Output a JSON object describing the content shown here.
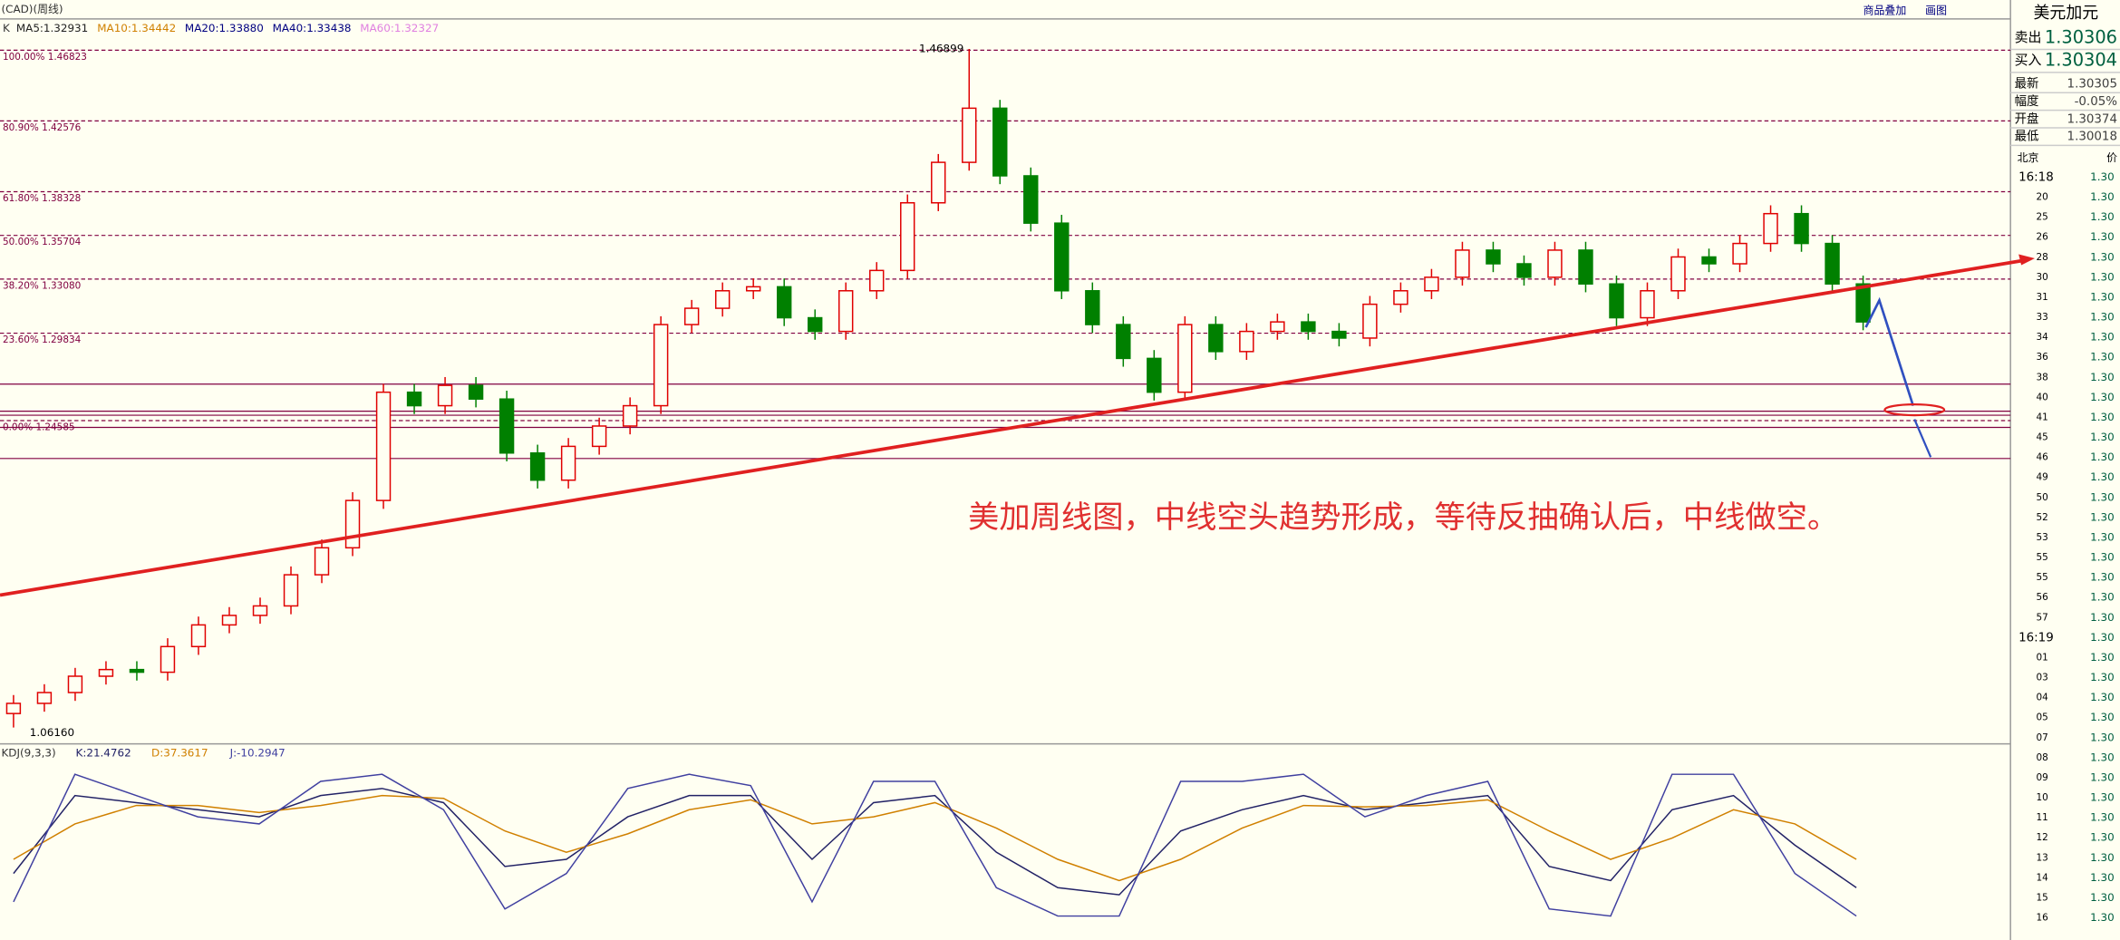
{
  "header": {
    "title": "(CAD)(周线)",
    "prefix": "K",
    "ma": [
      {
        "label": "MA5:1.32931",
        "color": "#222222"
      },
      {
        "label": "MA10:1.34442",
        "color": "#d08000"
      },
      {
        "label": "MA20:1.33880",
        "color": "#000080"
      },
      {
        "label": "MA40:1.33438",
        "color": "#000080"
      },
      {
        "label": "MA60:1.32327",
        "color": "#e080e0"
      }
    ],
    "buttons": [
      "商品叠加",
      "画图"
    ]
  },
  "chart_data": {
    "type": "candlestick",
    "ylim": [
      1.0534,
      1.474
    ],
    "up_color": "#e00000",
    "down_color": "#008000",
    "open": [
      1.07,
      1.0761,
      1.0826,
      1.0924,
      1.0964,
      1.0948,
      1.1102,
      1.1232,
      1.1289,
      1.1346,
      1.1533,
      1.1695,
      1.1979,
      1.2629,
      1.2548,
      1.267,
      1.2588,
      1.2264,
      1.2101,
      1.2304,
      1.2426,
      1.2548,
      1.3035,
      1.3133,
      1.3238,
      1.3262,
      1.3076,
      1.2994,
      1.3238,
      1.336,
      1.3766,
      1.4009,
      1.4334,
      1.3928,
      1.3644,
      1.3238,
      1.3035,
      1.2832,
      1.2629,
      1.3035,
      1.2873,
      1.2994,
      1.3051,
      1.2994,
      1.2954,
      1.3157,
      1.3238,
      1.3319,
      1.3482,
      1.34,
      1.3319,
      1.3482,
      1.3279,
      1.3076,
      1.3238,
      1.3441,
      1.34,
      1.3522,
      1.3701,
      1.3522,
      1.3279
    ],
    "high": [
      1.0811,
      1.0876,
      1.0974,
      1.1014,
      1.1014,
      1.1152,
      1.1282,
      1.1339,
      1.1396,
      1.1583,
      1.1745,
      1.2029,
      1.2679,
      1.2679,
      1.272,
      1.272,
      1.2638,
      1.2314,
      1.2354,
      1.2476,
      1.2598,
      1.3085,
      1.3183,
      1.3288,
      1.3312,
      1.3312,
      1.3126,
      1.3288,
      1.341,
      1.3816,
      1.4059,
      1.46899,
      1.4384,
      1.3978,
      1.3694,
      1.3288,
      1.3085,
      1.2882,
      1.3085,
      1.3085,
      1.3044,
      1.3101,
      1.3101,
      1.3044,
      1.3207,
      1.3288,
      1.3369,
      1.3532,
      1.3532,
      1.345,
      1.3532,
      1.3532,
      1.3329,
      1.3288,
      1.3491,
      1.3491,
      1.3572,
      1.3751,
      1.3751,
      1.3572,
      1.3329
    ],
    "low": [
      1.0616,
      1.0711,
      1.0776,
      1.0874,
      1.0898,
      1.0898,
      1.1052,
      1.1182,
      1.1239,
      1.1296,
      1.1483,
      1.1645,
      1.1929,
      1.2498,
      1.2498,
      1.2538,
      1.2214,
      1.2051,
      1.2051,
      1.2254,
      1.2376,
      1.2498,
      1.2985,
      1.3083,
      1.3188,
      1.3026,
      1.2944,
      1.2944,
      1.3188,
      1.331,
      1.3716,
      1.3959,
      1.3878,
      1.3594,
      1.3188,
      1.2985,
      1.2782,
      1.2579,
      1.2579,
      1.2823,
      1.2823,
      1.2944,
      1.2944,
      1.2904,
      1.2904,
      1.3107,
      1.3188,
      1.3269,
      1.335,
      1.3269,
      1.3269,
      1.3229,
      1.3026,
      1.3026,
      1.3188,
      1.335,
      1.335,
      1.3472,
      1.3472,
      1.3229,
      1.3001
    ],
    "close": [
      1.0761,
      1.0826,
      1.0924,
      1.0964,
      1.0948,
      1.1102,
      1.1232,
      1.1289,
      1.1346,
      1.1533,
      1.1695,
      1.1979,
      1.2629,
      1.2548,
      1.267,
      1.2588,
      1.2264,
      1.2101,
      1.2304,
      1.2426,
      1.2548,
      1.3035,
      1.3133,
      1.3238,
      1.3262,
      1.3076,
      1.2994,
      1.3238,
      1.336,
      1.3766,
      1.4009,
      1.4334,
      1.3928,
      1.3644,
      1.3238,
      1.3035,
      1.2832,
      1.2629,
      1.3035,
      1.2873,
      1.2994,
      1.3051,
      1.2994,
      1.2954,
      1.3157,
      1.3238,
      1.3319,
      1.3482,
      1.34,
      1.3319,
      1.3482,
      1.3279,
      1.3076,
      1.3238,
      1.3441,
      1.34,
      1.3522,
      1.3701,
      1.3522,
      1.3279,
      1.3051
    ],
    "fib_levels": [
      {
        "value": 1.46823,
        "label": "100.00% 1.46823"
      },
      {
        "value": 1.42576,
        "label": "80.90% 1.42576"
      },
      {
        "value": 1.38328,
        "label": "61.80% 1.38328"
      },
      {
        "value": 1.35704,
        "label": "50.00% 1.35704"
      },
      {
        "value": 1.3308,
        "label": "38.20% 1.33080"
      },
      {
        "value": 1.29834,
        "label": "23.60% 1.29834"
      },
      {
        "value": 1.24585,
        "label": "0.00% 1.24585"
      }
    ],
    "max_label": 1.46899,
    "min_label": {
      "value": 1.0616,
      "label": "1.06160"
    },
    "annotation": "美加周线图，中线空头趋势形成，等待反抽确认后，中线做空。"
  },
  "kdj": {
    "title": "KDJ(9,3,3)",
    "k_label": "K:21.4762",
    "d_label": "D:37.3617",
    "j_label": "J:-10.2947",
    "ylim": [
      -15,
      110
    ],
    "series": [
      {
        "color": "#222266",
        "values": [
          30,
          85,
          80,
          75,
          70,
          85,
          90,
          80,
          35,
          40,
          70,
          85,
          85,
          40,
          80,
          85,
          45,
          20,
          15,
          60,
          75,
          85,
          75,
          80,
          85,
          35,
          25,
          75,
          85,
          50,
          20
        ]
      },
      {
        "color": "#d08000",
        "values": [
          40,
          65,
          78,
          78,
          73,
          78,
          85,
          83,
          60,
          45,
          58,
          75,
          82,
          65,
          70,
          80,
          62,
          40,
          25,
          40,
          62,
          78,
          77,
          78,
          82,
          60,
          40,
          55,
          75,
          65,
          40
        ]
      },
      {
        "color": "#4040a0",
        "values": [
          10,
          100,
          85,
          70,
          65,
          95,
          100,
          75,
          5,
          30,
          90,
          100,
          92,
          10,
          95,
          95,
          20,
          0,
          0,
          95,
          95,
          100,
          70,
          85,
          95,
          5,
          0,
          100,
          100,
          30,
          0
        ]
      }
    ]
  },
  "quote": {
    "title": "美元加元",
    "rows": [
      [
        "卖出",
        "1.30306"
      ],
      [
        "买入",
        "1.30304"
      ],
      [
        "最新",
        "1.30305"
      ],
      [
        "幅度",
        "-0.05%"
      ],
      [
        "开盘",
        "1.30374"
      ],
      [
        "最低",
        "1.30018"
      ]
    ],
    "ticks_header": [
      "北京",
      "价"
    ],
    "ticks": [
      [
        "16:18",
        "1.30"
      ],
      [
        "20",
        "1.30"
      ],
      [
        "25",
        "1.30"
      ],
      [
        "26",
        "1.30"
      ],
      [
        "28",
        "1.30"
      ],
      [
        "30",
        "1.30"
      ],
      [
        "31",
        "1.30"
      ],
      [
        "33",
        "1.30"
      ],
      [
        "34",
        "1.30"
      ],
      [
        "36",
        "1.30"
      ],
      [
        "38",
        "1.30"
      ],
      [
        "40",
        "1.30"
      ],
      [
        "41",
        "1.30"
      ],
      [
        "45",
        "1.30"
      ],
      [
        "46",
        "1.30"
      ],
      [
        "49",
        "1.30"
      ],
      [
        "50",
        "1.30"
      ],
      [
        "52",
        "1.30"
      ],
      [
        "53",
        "1.30"
      ],
      [
        "55",
        "1.30"
      ],
      [
        "55",
        "1.30"
      ],
      [
        "56",
        "1.30"
      ],
      [
        "57",
        "1.30"
      ],
      [
        "16:19",
        "1.30"
      ],
      [
        "01",
        "1.30"
      ],
      [
        "03",
        "1.30"
      ],
      [
        "04",
        "1.30"
      ],
      [
        "05",
        "1.30"
      ],
      [
        "07",
        "1.30"
      ],
      [
        "08",
        "1.30"
      ],
      [
        "09",
        "1.30"
      ],
      [
        "10",
        "1.30"
      ],
      [
        "11",
        "1.30"
      ],
      [
        "12",
        "1.30"
      ],
      [
        "13",
        "1.30"
      ],
      [
        "14",
        "1.30"
      ],
      [
        "15",
        "1.30"
      ],
      [
        "16",
        "1.30"
      ]
    ]
  }
}
